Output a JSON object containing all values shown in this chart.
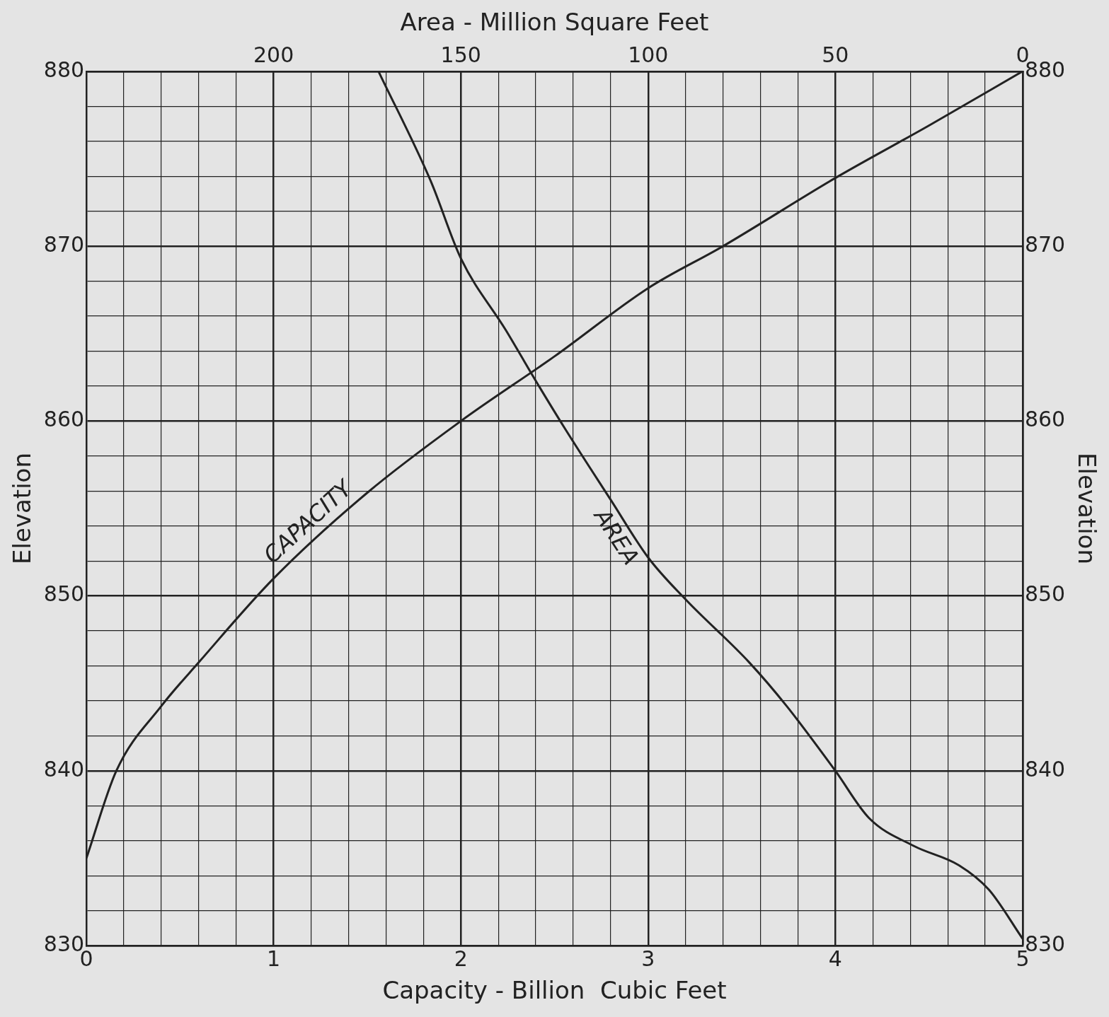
{
  "chart_data": {
    "type": "line",
    "xlabel": "Capacity - Billion  Cubic Feet",
    "x2label": "Area - Million Square Feet",
    "ylabel": "Elevation",
    "y2label": "Elevation",
    "xlim": [
      0,
      5
    ],
    "xticks": [
      0,
      {
        "value": 0.2,
        "label": null
      },
      {
        "value": 0.4,
        "label": null
      },
      {
        "value": 0.6,
        "label": null
      },
      {
        "value": 0.8,
        "label": null
      },
      1,
      {
        "value": 1.2,
        "label": null
      },
      {
        "value": 1.4,
        "label": null
      },
      {
        "value": 1.6,
        "label": null
      },
      {
        "value": 1.8,
        "label": null
      },
      2,
      {
        "value": 2.2,
        "label": null
      },
      {
        "value": 2.4,
        "label": null
      },
      {
        "value": 2.6,
        "label": null
      },
      {
        "value": 2.8,
        "label": null
      },
      3,
      {
        "value": 3.2,
        "label": null
      },
      {
        "value": 3.4,
        "label": null
      },
      {
        "value": 3.6,
        "label": null
      },
      {
        "value": 3.8,
        "label": null
      },
      4,
      {
        "value": 4.2,
        "label": null
      },
      {
        "value": 4.4,
        "label": null
      },
      {
        "value": 4.6,
        "label": null
      },
      {
        "value": 4.8,
        "label": null
      },
      5
    ],
    "x2lim": [
      250,
      0
    ],
    "x2ticks": [
      200,
      150,
      100,
      50,
      0
    ],
    "ylim": [
      830,
      880
    ],
    "yticks": [
      830,
      {
        "value": 832,
        "label": null
      },
      {
        "value": 834,
        "label": null
      },
      {
        "value": 836,
        "label": null
      },
      {
        "value": 838,
        "label": null
      },
      840,
      {
        "value": 842,
        "label": null
      },
      {
        "value": 844,
        "label": null
      },
      {
        "value": 846,
        "label": null
      },
      {
        "value": 848,
        "label": null
      },
      850,
      {
        "value": 852,
        "label": null
      },
      {
        "value": 854,
        "label": null
      },
      {
        "value": 856,
        "label": null
      },
      {
        "value": 858,
        "label": null
      },
      860,
      {
        "value": 862,
        "label": null
      },
      {
        "value": 864,
        "label": null
      },
      {
        "value": 866,
        "label": null
      },
      {
        "value": 868,
        "label": null
      },
      870,
      {
        "value": 872,
        "label": null
      },
      {
        "value": 874,
        "label": null
      },
      {
        "value": 876,
        "label": null
      },
      {
        "value": 878,
        "label": null
      },
      880
    ],
    "y2lim": [
      830,
      880
    ],
    "y2ticks": [
      830,
      840,
      850,
      860,
      870,
      880
    ],
    "grid": true,
    "legend": false,
    "marker": "none",
    "line_style": "solid",
    "series": [
      {
        "name": "CAPACITY",
        "color": "#222222",
        "x": [
          0,
          0.16,
          0.4,
          0.6,
          1.0,
          1.5,
          2.0,
          2.5,
          3.0,
          3.4,
          4.0,
          4.5,
          5.0
        ],
        "values": [
          835,
          840,
          843.7,
          846.2,
          851,
          855.9,
          860,
          863.7,
          867.6,
          870,
          873.9,
          876.9,
          880
        ]
      },
      {
        "name": "AREA",
        "color": "#222222",
        "axis": "x2",
        "x": [
          172,
          158,
          150,
          138,
          130,
          122,
          110,
          100,
          90,
          73,
          63,
          50,
          41,
          29,
          17,
          9,
          0
        ],
        "values": [
          880,
          873.7,
          869.3,
          865.2,
          862.3,
          859.5,
          855.5,
          852.2,
          849.8,
          846.2,
          843.7,
          840,
          837.3,
          835.7,
          834.6,
          833.2,
          830.4
        ]
      }
    ]
  }
}
